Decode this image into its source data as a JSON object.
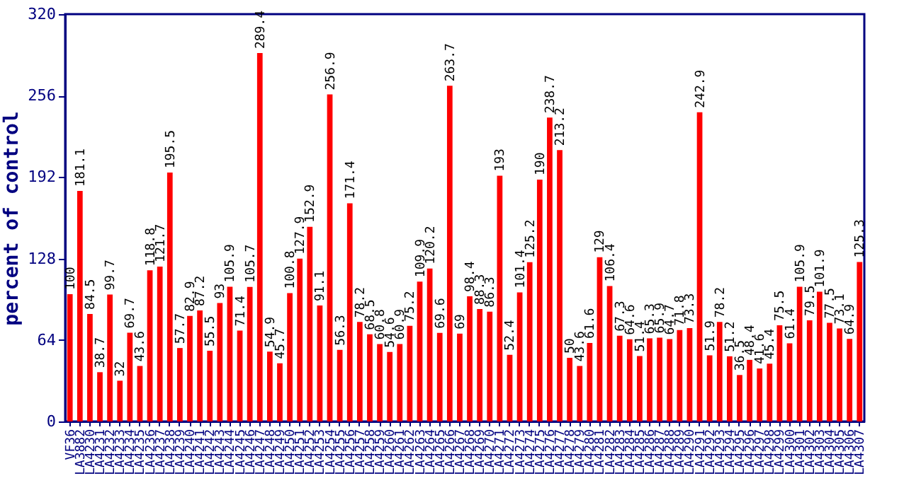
{
  "chart_data": {
    "type": "bar",
    "ylabel": "percent of control",
    "categories": [
      "VF36",
      "LA3882",
      "LA4230",
      "LA4231",
      "LA4232",
      "LA4233",
      "LA4234",
      "LA4235",
      "LA4236",
      "LA4237",
      "LA4238",
      "LA4239",
      "LA4240",
      "LA4241",
      "LA4242",
      "LA4243",
      "LA4244",
      "LA4245",
      "LA4246",
      "LA4247",
      "LA4248",
      "LA4249",
      "LA4250",
      "LA4251",
      "LA4252",
      "LA4253",
      "LA4254",
      "LA4255",
      "LA4256",
      "LA4257",
      "LA4258",
      "LA4259",
      "LA4260",
      "LA4261",
      "LA4262",
      "LA4263",
      "LA4264",
      "LA4265",
      "LA4266",
      "LA4267",
      "LA4268",
      "LA4269",
      "LA4270",
      "LA4271",
      "LA4272",
      "LA4273",
      "LA4274",
      "LA4275",
      "LA4276",
      "LA4277",
      "LA4278",
      "LA4279",
      "LA4280",
      "LA4281",
      "LA4282",
      "LA4283",
      "LA4284",
      "LA4285",
      "LA4286",
      "LA4287",
      "LA4288",
      "LA4289",
      "LA4290",
      "LA4291",
      "LA4292",
      "LA4293",
      "LA4294",
      "LA4295",
      "LA4296",
      "LA4297",
      "LA4298",
      "LA4299",
      "LA4300",
      "LA4301",
      "LA4302",
      "LA4303",
      "LA4304",
      "LA4305",
      "LA4306",
      "LA4307"
    ],
    "values": [
      100,
      181.1,
      84.5,
      38.7,
      99.7,
      32,
      69.7,
      43.6,
      118.8,
      121.7,
      195.5,
      57.7,
      82.9,
      87.2,
      55.5,
      93,
      105.9,
      71.4,
      105.7,
      289.4,
      54.9,
      45.7,
      100.8,
      127.9,
      152.9,
      91.1,
      256.9,
      56.3,
      171.4,
      78.2,
      68.5,
      60.8,
      54.6,
      60.9,
      75.2,
      109.9,
      120.2,
      69.6,
      263.7,
      69,
      98.4,
      88.3,
      86.3,
      193,
      52.4,
      101.4,
      125.2,
      190,
      238.7,
      213.2,
      50,
      43.6,
      61.6,
      129,
      106.4,
      67.3,
      64.6,
      51.4,
      65.3,
      65.9,
      64.7,
      71.8,
      73.3,
      242.9,
      51.9,
      78.2,
      51.2,
      36.5,
      48.4,
      41.6,
      45.4,
      75.5,
      61.4,
      105.9,
      79.5,
      101.9,
      77.5,
      73.1,
      64.9,
      125.3
    ],
    "color": "#ff0000",
    "ylim": [
      0,
      320
    ],
    "yticks": [
      0,
      64,
      128,
      192,
      256,
      320
    ],
    "data_labels": true,
    "grid": false
  }
}
